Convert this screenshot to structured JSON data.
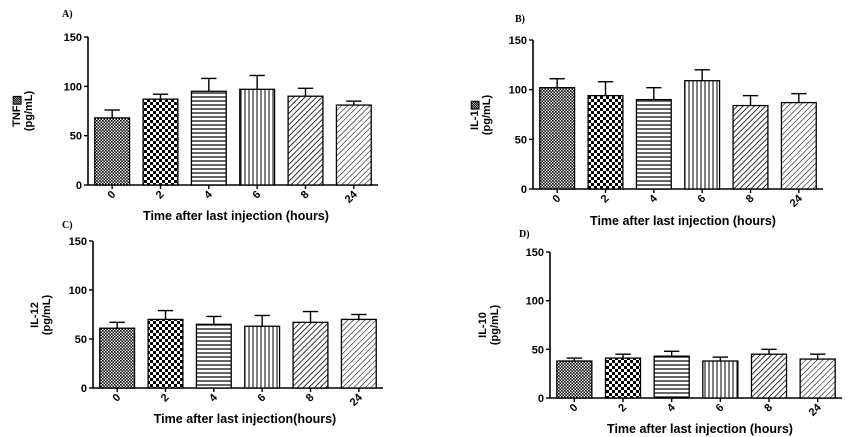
{
  "chart_data": [
    {
      "panel": "A)",
      "type": "bar",
      "ylabel_line1": "TNF▨",
      "ylabel_line2": "(pg/mL)",
      "xlabel": "Time after last injection  (hours)",
      "categories": [
        "0",
        "2",
        "4",
        "6",
        "8",
        "24"
      ],
      "values": [
        68,
        87,
        95,
        97,
        90,
        81
      ],
      "errors": [
        8,
        5,
        13,
        14,
        8,
        4
      ],
      "ylim": [
        0,
        150
      ],
      "yticks": [
        0,
        50,
        100,
        150
      ],
      "grid": false
    },
    {
      "panel": "B)",
      "type": "bar",
      "ylabel_line1": "IL-1▨",
      "ylabel_line2": "(pg/mL)",
      "xlabel": "Time after last injection  (hours)",
      "categories": [
        "0",
        "2",
        "4",
        "6",
        "8",
        "24"
      ],
      "values": [
        102,
        94,
        90,
        109,
        84,
        87
      ],
      "errors": [
        9,
        14,
        12,
        11,
        10,
        9
      ],
      "ylim": [
        0,
        150
      ],
      "yticks": [
        0,
        50,
        100,
        150
      ],
      "grid": false
    },
    {
      "panel": "C)",
      "type": "bar",
      "ylabel_line1": "IL-12",
      "ylabel_line2": "(pg/mL)",
      "xlabel": "Time after last injection(hours)",
      "categories": [
        "0",
        "2",
        "4",
        "6",
        "8",
        "24"
      ],
      "values": [
        61,
        70,
        65,
        63,
        67,
        70
      ],
      "errors": [
        6,
        9,
        8,
        11,
        11,
        5
      ],
      "ylim": [
        0,
        150
      ],
      "yticks": [
        0,
        50,
        100,
        150
      ],
      "grid": false
    },
    {
      "panel": "D)",
      "type": "bar",
      "ylabel_line1": "IL-10",
      "ylabel_line2": "(pg/mL)",
      "xlabel": "Time after last injection (hours)",
      "categories": [
        "0",
        "2",
        "4",
        "6",
        "8",
        "24"
      ],
      "values": [
        38,
        41,
        43,
        38,
        45,
        40
      ],
      "errors": [
        3,
        4,
        5,
        4,
        5,
        5
      ],
      "ylim": [
        0,
        150
      ],
      "yticks": [
        0,
        50,
        100,
        150
      ],
      "grid": false
    }
  ]
}
